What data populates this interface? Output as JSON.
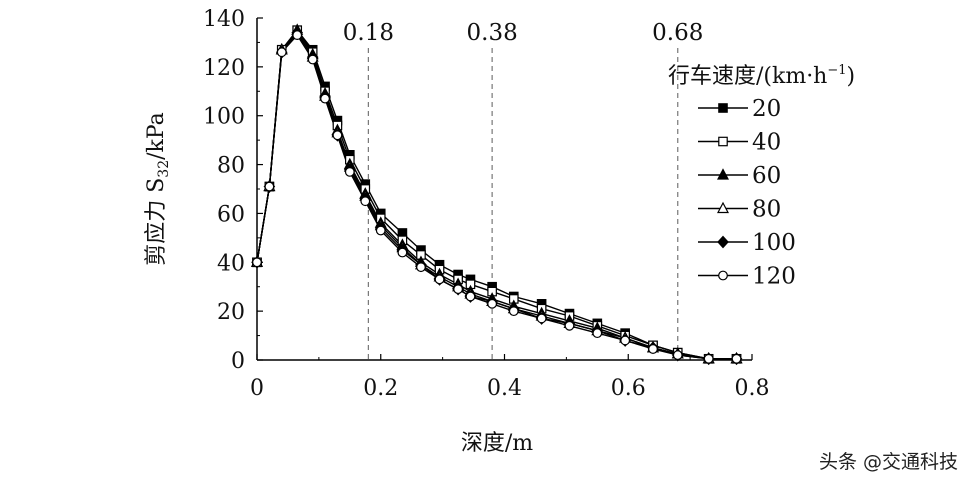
{
  "chart_data": {
    "type": "line",
    "xlabel": "深度/m",
    "ylabel": "剪应力 S",
    "ylabel_sub": "32",
    "ylabel_unit": "/kPa",
    "xlim": [
      0,
      0.8
    ],
    "ylim": [
      0,
      140
    ],
    "x_ticks": [
      {
        "value": 0,
        "label": "0"
      },
      {
        "value": 0.2,
        "label": "0.2"
      },
      {
        "value": 0.4,
        "label": "0.4"
      },
      {
        "value": 0.6,
        "label": "0.6"
      },
      {
        "value": 0.8,
        "label": "0.8"
      }
    ],
    "y_ticks": [
      {
        "value": 0,
        "label": "0"
      },
      {
        "value": 20,
        "label": "20"
      },
      {
        "value": 40,
        "label": "40"
      },
      {
        "value": 60,
        "label": "60"
      },
      {
        "value": 80,
        "label": "80"
      },
      {
        "value": 100,
        "label": "100"
      },
      {
        "value": 120,
        "label": "120"
      },
      {
        "value": 140,
        "label": "140"
      }
    ],
    "grid": false,
    "reference_lines": [
      {
        "x": 0.18,
        "label": "0.18"
      },
      {
        "x": 0.38,
        "label": "0.38"
      },
      {
        "x": 0.68,
        "label": "0.68"
      }
    ],
    "legend": {
      "title": "行车速度/(km·h",
      "title_sup": "−1",
      "title_end": ")",
      "placement": "right"
    },
    "x": [
      0,
      0.02,
      0.04,
      0.065,
      0.09,
      0.11,
      0.13,
      0.15,
      0.175,
      0.2,
      0.235,
      0.265,
      0.295,
      0.325,
      0.345,
      0.38,
      0.415,
      0.46,
      0.505,
      0.55,
      0.595,
      0.64,
      0.68,
      0.73,
      0.775
    ],
    "series": [
      {
        "name": "20",
        "marker": "square-filled",
        "values": [
          40,
          71,
          127,
          135,
          127,
          112,
          98,
          84,
          72,
          60,
          52,
          45,
          39,
          35,
          33,
          30,
          26,
          23,
          19,
          15,
          11,
          6,
          3,
          0.5,
          0.5
        ]
      },
      {
        "name": "40",
        "marker": "square-open",
        "values": [
          40,
          71,
          127,
          135,
          126,
          110,
          96,
          82,
          70,
          58,
          49,
          43,
          37,
          33,
          31,
          28,
          25,
          21,
          18,
          14,
          10,
          6,
          3,
          0.5,
          0.5
        ]
      },
      {
        "name": "60",
        "marker": "triangle-filled",
        "values": [
          40,
          71,
          127,
          135,
          125,
          109,
          94,
          80,
          68,
          56,
          47,
          40,
          35,
          31,
          28,
          25,
          22,
          19,
          16,
          13,
          9,
          5,
          2.5,
          0.5,
          0.5
        ]
      },
      {
        "name": "80",
        "marker": "triangle-open",
        "values": [
          40,
          71,
          127,
          134,
          124,
          108,
          93,
          79,
          67,
          55,
          46,
          39,
          34,
          30,
          27,
          24,
          21,
          18,
          15,
          12,
          9,
          5,
          2.5,
          0.5,
          0.5
        ]
      },
      {
        "name": "100",
        "marker": "diamond-filled",
        "values": [
          40,
          71,
          126,
          134,
          124,
          108,
          92,
          78,
          66,
          54,
          45,
          39,
          33,
          29,
          26,
          24,
          21,
          17,
          15,
          12,
          8,
          5,
          2,
          0.5,
          0.5
        ]
      },
      {
        "name": "120",
        "marker": "circle-open",
        "values": [
          40,
          71,
          126,
          133,
          123,
          107,
          92,
          77,
          65,
          53,
          44,
          38,
          33,
          29,
          26,
          23,
          20,
          17,
          14,
          11,
          8,
          4.5,
          2,
          0.5,
          0.5
        ]
      }
    ]
  },
  "watermark": "头条 @交通科技"
}
